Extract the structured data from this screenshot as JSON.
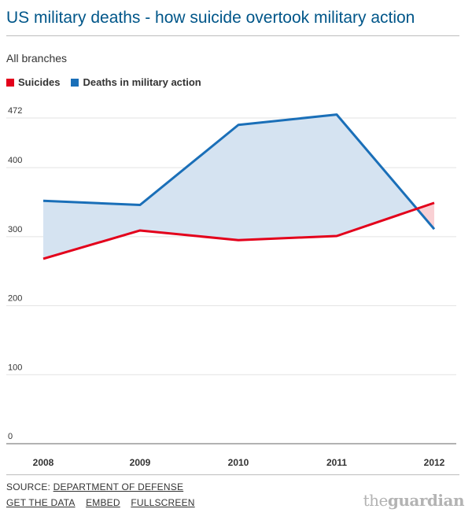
{
  "title": "US military deaths - how suicide overtook military action",
  "subtitle": "All branches",
  "colors": {
    "suicides": "#e3001b",
    "military_action": "#1a6fb8",
    "area_blue": "#d5e3f1",
    "area_red": "#f9d0d4",
    "title": "#005689"
  },
  "chart_data": {
    "type": "line",
    "title": "US military deaths - how suicide overtook military action",
    "subtitle": "All branches",
    "categories": [
      "2008",
      "2009",
      "2010",
      "2011",
      "2012"
    ],
    "series": [
      {
        "name": "Suicides",
        "values": [
          268,
          309,
          295,
          301,
          349
        ]
      },
      {
        "name": "Deaths in military action",
        "values": [
          352,
          346,
          462,
          477,
          311
        ]
      }
    ],
    "yticks": [
      "0",
      "100",
      "200",
      "300",
      "400",
      "472"
    ],
    "ylim": [
      0,
      480
    ],
    "grid": true,
    "legend": "top-left"
  },
  "legend": {
    "suicides": "Suicides",
    "military_action": "Deaths in military action"
  },
  "footer": {
    "source_prefix": "SOURCE: ",
    "source_link": "DEPARTMENT OF DEFENSE",
    "links": [
      "GET THE DATA",
      "EMBED",
      "FULLSCREEN"
    ]
  },
  "brand": {
    "the": "the",
    "name": "guardian"
  }
}
